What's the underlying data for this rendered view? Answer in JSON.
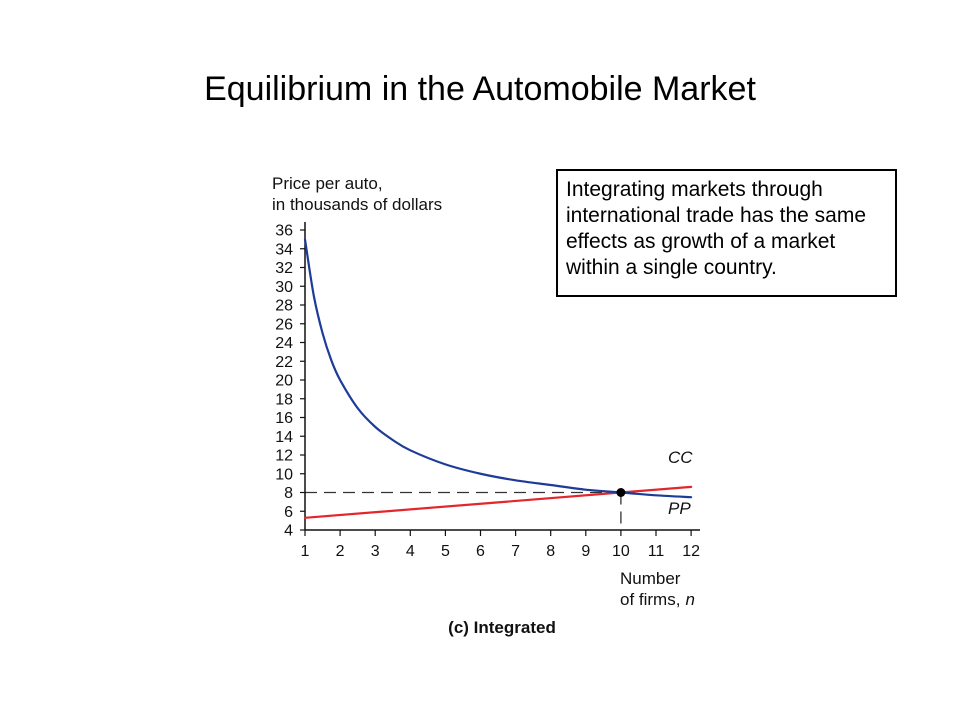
{
  "chart_data": {
    "type": "line",
    "title": "Equilibrium in the Automobile Market",
    "caption": "(c) Integrated",
    "ylabel": [
      "Price per auto,",
      "in thousands of dollars"
    ],
    "xlabel": [
      "Number",
      "of firms,"
    ],
    "xlabel_variable": "n",
    "xlim": [
      1,
      12
    ],
    "ylim": [
      4,
      36
    ],
    "x_ticks": [
      1,
      2,
      3,
      4,
      5,
      6,
      7,
      8,
      9,
      10,
      11,
      12
    ],
    "y_ticks": [
      4,
      6,
      8,
      10,
      12,
      14,
      16,
      18,
      20,
      22,
      24,
      26,
      28,
      30,
      32,
      34,
      36
    ],
    "grid": false,
    "legend": "none",
    "series": [
      {
        "name": "CC",
        "color": "#e3262b",
        "x": [
          1,
          12
        ],
        "values": [
          5.3,
          8.6
        ]
      },
      {
        "name": "PP",
        "color": "#1d3c98",
        "x": [
          1,
          1.25,
          1.5,
          1.75,
          2,
          2.5,
          3,
          3.5,
          4,
          5,
          6,
          7,
          8,
          9,
          10,
          11,
          12
        ],
        "values": [
          35,
          29,
          25,
          22.1,
          20,
          17,
          15,
          13.6,
          12.5,
          11,
          10,
          9.3,
          8.8,
          8.3,
          8,
          7.7,
          7.5
        ]
      }
    ],
    "equilibrium": {
      "x": 10,
      "y": 8
    }
  },
  "annotation": {
    "lines": [
      "Integrating markets through",
      "international trade has the same",
      "effects as growth of a market",
      "within a single country."
    ]
  }
}
